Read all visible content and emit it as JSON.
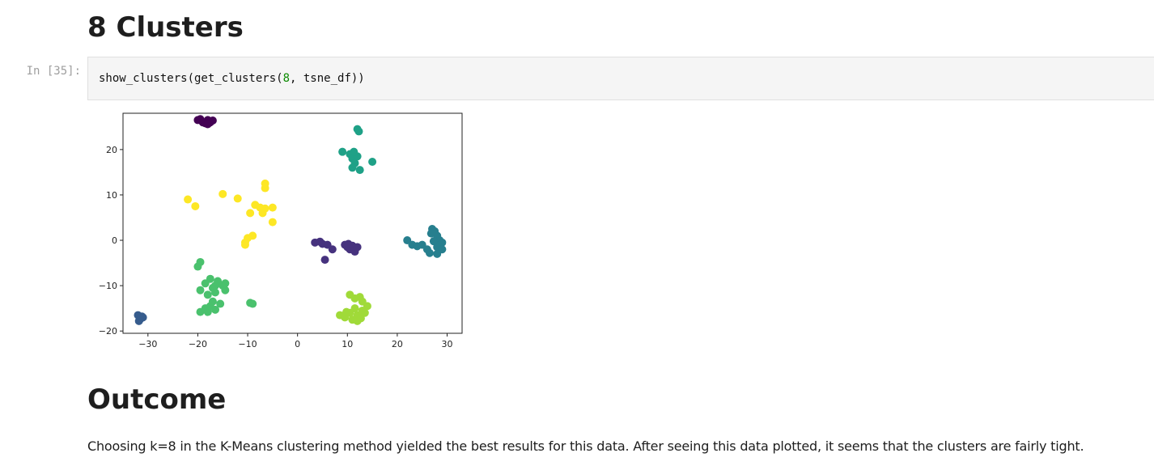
{
  "heading_clusters": "8 Clusters",
  "cell": {
    "prompt": "In [35]:",
    "code_prefix": "show_clusters(get_clusters(",
    "code_number": "8",
    "code_suffix": ", tsne_df))"
  },
  "heading_outcome": "Outcome",
  "outcome_text": "Choosing k=8 in the K-Means clustering method yielded the best results for this data. After seeing this data plotted, it seems that the clusters are fairly tight.",
  "chart_data": {
    "type": "scatter",
    "title": "",
    "xlabel": "",
    "ylabel": "",
    "xlim": [
      -35,
      33
    ],
    "ylim": [
      -20.5,
      28
    ],
    "xticks": [
      -30,
      -20,
      -10,
      0,
      10,
      20,
      30
    ],
    "yticks": [
      -20,
      -10,
      0,
      10,
      20
    ],
    "xtick_labels": [
      "−30",
      "−20",
      "−10",
      "0",
      "10",
      "20",
      "30"
    ],
    "ytick_labels": [
      "−20",
      "−10",
      "0",
      "10",
      "20"
    ],
    "grid": false,
    "colors": [
      "#440154",
      "#46327e",
      "#365c8d",
      "#277f8e",
      "#1fa187",
      "#4ac16d",
      "#a0da39",
      "#fde725"
    ],
    "series": [
      {
        "cluster": 0,
        "points": [
          [
            -20,
            26.5
          ],
          [
            -19,
            26
          ],
          [
            -18,
            26.5
          ],
          [
            -17.5,
            26
          ],
          [
            -18.5,
            25.8
          ],
          [
            -19.5,
            26.7
          ],
          [
            -17,
            26.4
          ],
          [
            -18,
            25.6
          ]
        ]
      },
      {
        "cluster": 1,
        "points": [
          [
            3.5,
            -0.5
          ],
          [
            4.5,
            -0.3
          ],
          [
            5,
            -0.8
          ],
          [
            6,
            -1
          ],
          [
            7,
            -2
          ],
          [
            5.5,
            -4.3
          ],
          [
            9.5,
            -1
          ],
          [
            10,
            -1.5
          ],
          [
            10.5,
            -2
          ],
          [
            11,
            -1.2
          ],
          [
            11.5,
            -2.5
          ],
          [
            12,
            -1.5
          ],
          [
            10.2,
            -0.8
          ]
        ]
      },
      {
        "cluster": 2,
        "points": [
          [
            -32,
            -16.5
          ],
          [
            -31.5,
            -17.3
          ],
          [
            -31,
            -17
          ],
          [
            -31.8,
            -17.8
          ],
          [
            -31.2,
            -16.8
          ]
        ]
      },
      {
        "cluster": 3,
        "points": [
          [
            22,
            0
          ],
          [
            23,
            -1
          ],
          [
            24,
            -1.3
          ],
          [
            25,
            -1
          ],
          [
            26,
            -2
          ],
          [
            26.5,
            -2.8
          ],
          [
            27,
            2.5
          ],
          [
            27.5,
            2
          ],
          [
            28,
            1
          ],
          [
            28.5,
            0
          ],
          [
            29,
            -0.5
          ],
          [
            28,
            -1.5
          ],
          [
            29,
            -2
          ],
          [
            28,
            -3
          ],
          [
            27.3,
            -0.2
          ],
          [
            26.8,
            1.5
          ]
        ]
      },
      {
        "cluster": 4,
        "points": [
          [
            12,
            24.5
          ],
          [
            12.3,
            24
          ],
          [
            9,
            19.5
          ],
          [
            10.5,
            19
          ],
          [
            11,
            18
          ],
          [
            12,
            18.5
          ],
          [
            11.5,
            17
          ],
          [
            11,
            16
          ],
          [
            12.5,
            15.5
          ],
          [
            15,
            17.3
          ],
          [
            11.3,
            19.5
          ]
        ]
      },
      {
        "cluster": 5,
        "points": [
          [
            -20,
            -5.8
          ],
          [
            -19.5,
            -4.8
          ],
          [
            -19.5,
            -11
          ],
          [
            -18.5,
            -9.5
          ],
          [
            -18,
            -12
          ],
          [
            -17.5,
            -8.5
          ],
          [
            -17,
            -10.5
          ],
          [
            -16,
            -9
          ],
          [
            -15,
            -10
          ],
          [
            -14.5,
            -11
          ],
          [
            -16.5,
            -11.5
          ],
          [
            -17,
            -13.5
          ],
          [
            -15.5,
            -14
          ],
          [
            -19.5,
            -15.8
          ],
          [
            -18.5,
            -15
          ],
          [
            -18,
            -15.8
          ],
          [
            -17.5,
            -14.5
          ],
          [
            -16.5,
            -15.3
          ],
          [
            -14.5,
            -9.5
          ],
          [
            -9.5,
            -13.8
          ],
          [
            -9,
            -14
          ],
          [
            -16.5,
            -10
          ]
        ]
      },
      {
        "cluster": 6,
        "points": [
          [
            8.5,
            -16.5
          ],
          [
            9.5,
            -17
          ],
          [
            10.5,
            -16
          ],
          [
            11,
            -17.5
          ],
          [
            12,
            -16.5
          ],
          [
            13,
            -15.5
          ],
          [
            14,
            -14.5
          ],
          [
            13.5,
            -16
          ],
          [
            12,
            -17.8
          ],
          [
            11.5,
            -15
          ],
          [
            10.5,
            -12
          ],
          [
            11.5,
            -12.8
          ],
          [
            12.5,
            -12.5
          ],
          [
            13,
            -13.5
          ],
          [
            9.8,
            -15.8
          ],
          [
            12.7,
            -17.2
          ]
        ]
      },
      {
        "cluster": 7,
        "points": [
          [
            -22,
            9
          ],
          [
            -20.5,
            7.5
          ],
          [
            -15,
            10.2
          ],
          [
            -12,
            9.2
          ],
          [
            -9.5,
            6
          ],
          [
            -8.5,
            7.8
          ],
          [
            -7.5,
            7.2
          ],
          [
            -7,
            6
          ],
          [
            -6.5,
            7
          ],
          [
            -5,
            7.2
          ],
          [
            -5,
            4
          ],
          [
            -6.5,
            11.5
          ],
          [
            -6.5,
            12.5
          ],
          [
            -9,
            1
          ],
          [
            -10,
            0.5
          ],
          [
            -10.5,
            -0.5
          ],
          [
            -10.5,
            -1
          ]
        ]
      }
    ]
  }
}
